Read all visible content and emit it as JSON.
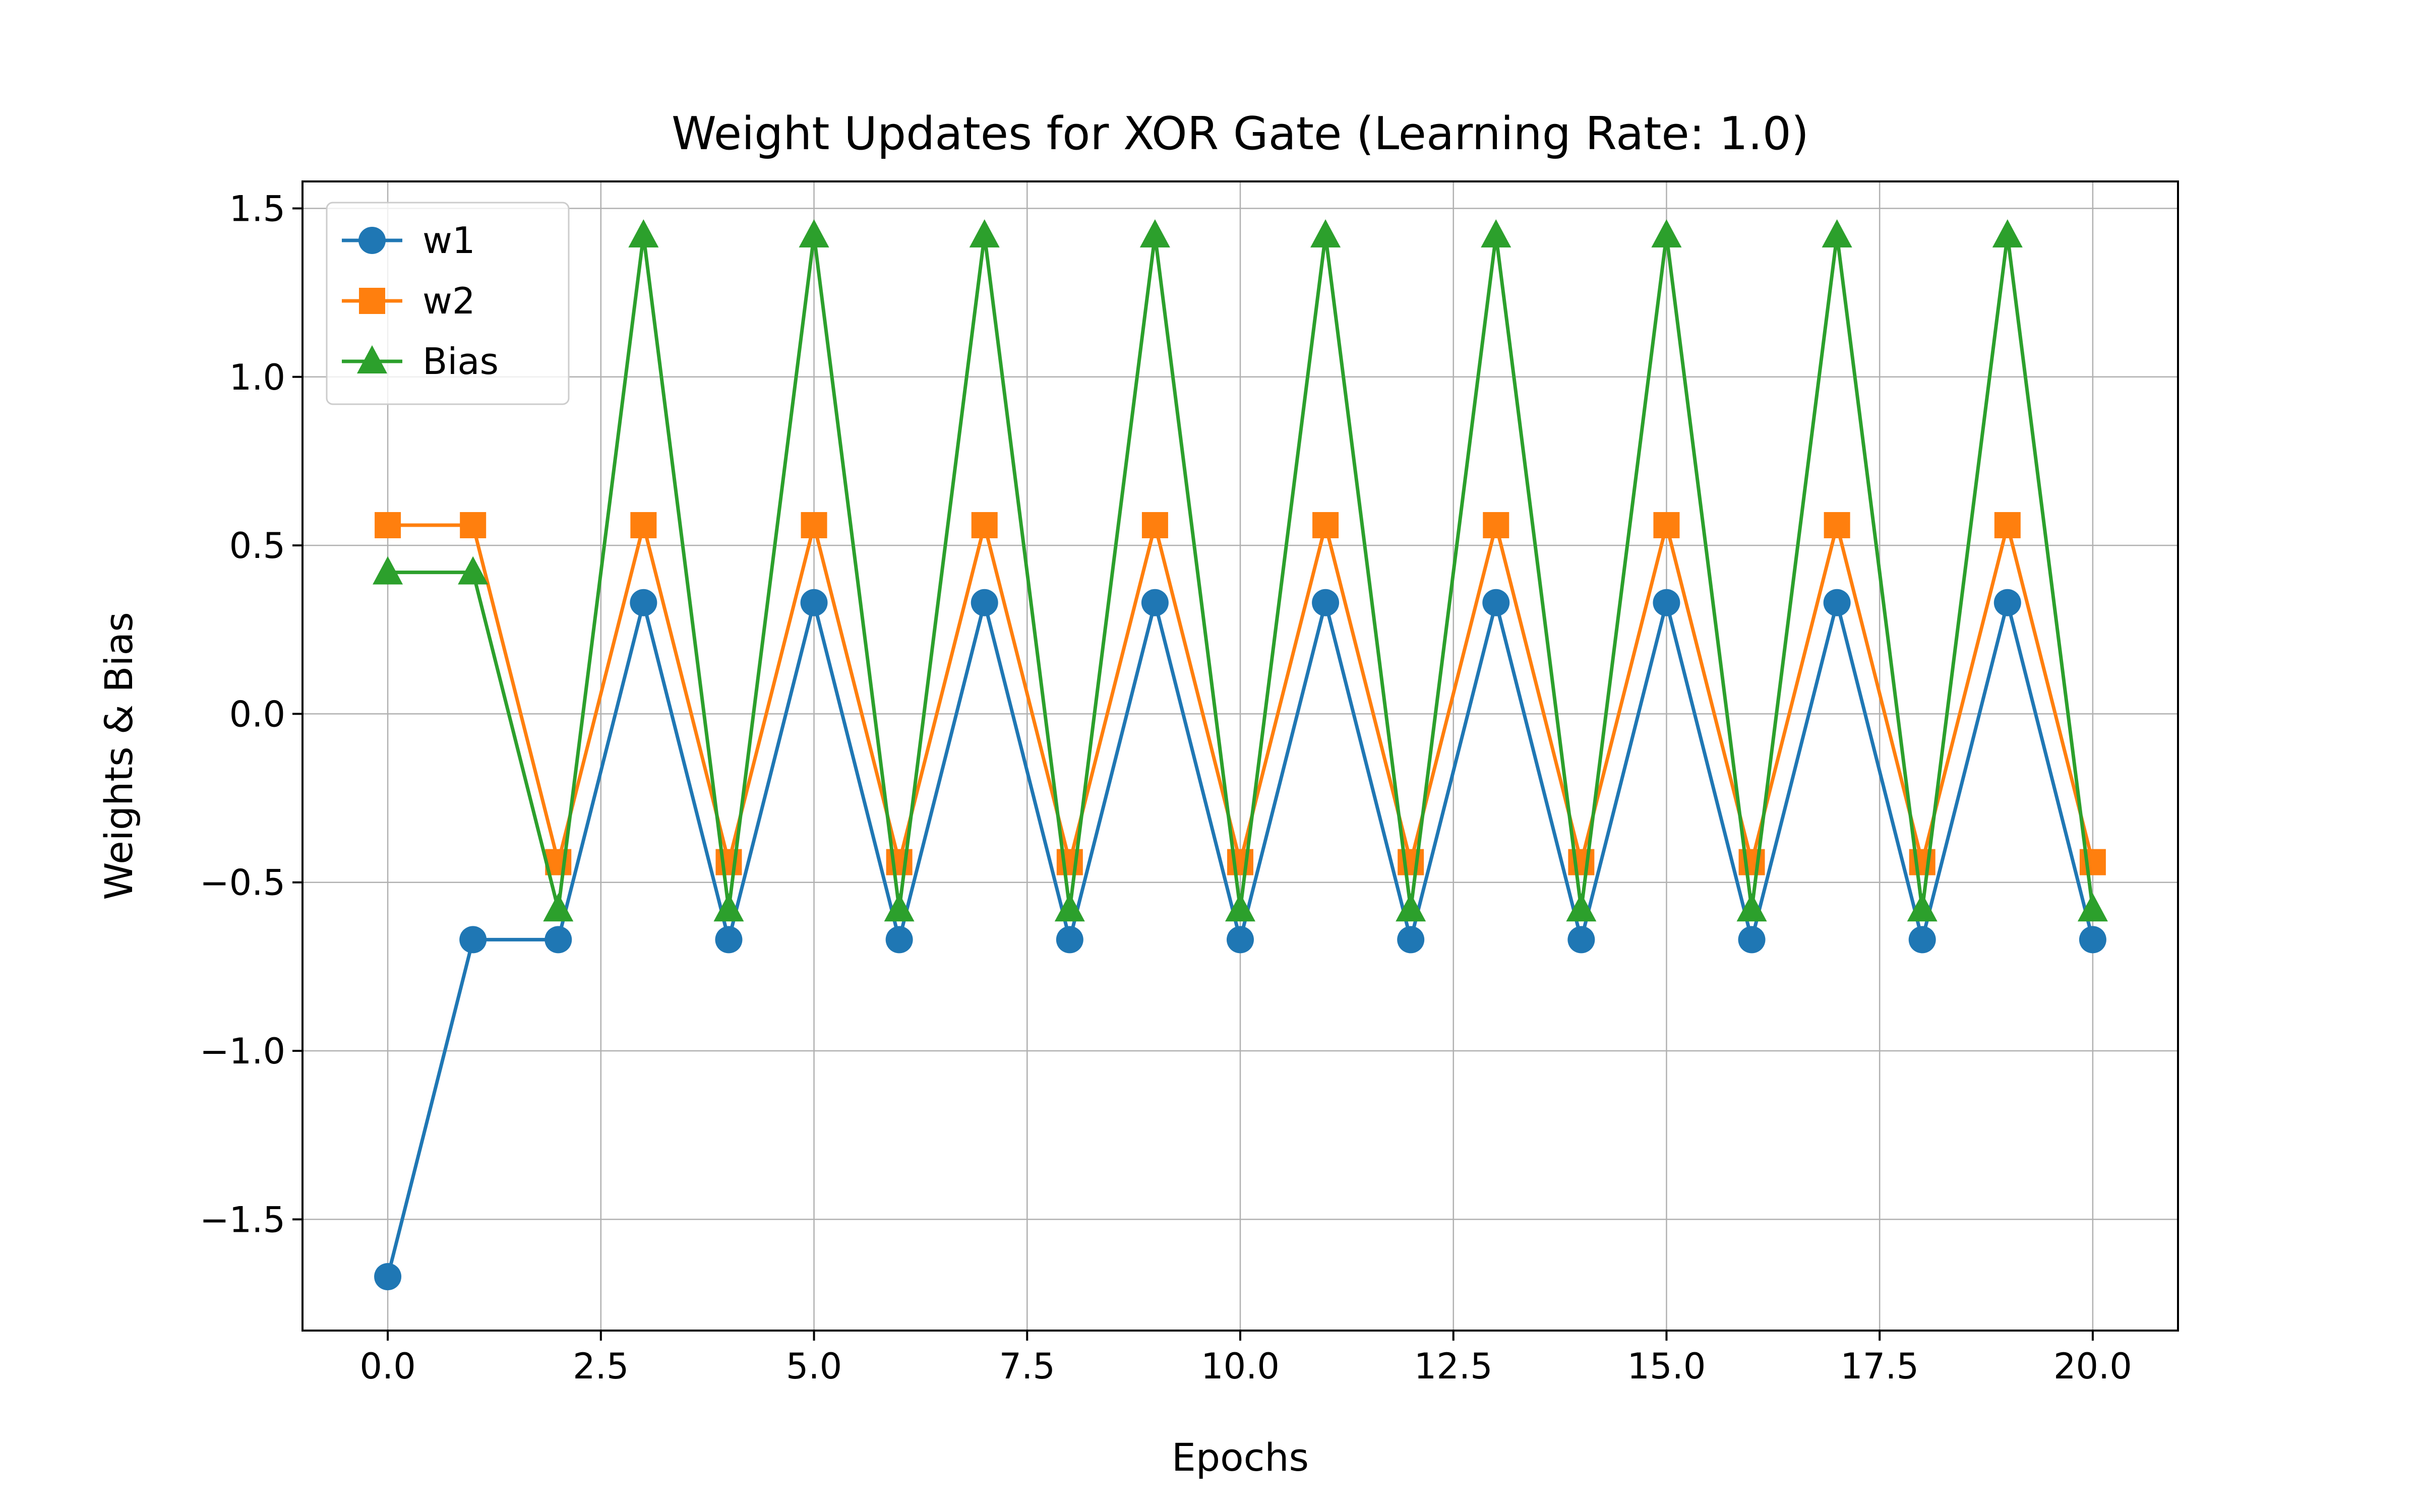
{
  "chart_data": {
    "type": "line",
    "title": "Weight Updates for XOR Gate (Learning Rate: 1.0)",
    "xlabel": "Epochs",
    "ylabel": "Weights & Bias",
    "xlim": [
      -1.0,
      21.0
    ],
    "ylim": [
      -1.83,
      1.58
    ],
    "xticks": [
      0.0,
      2.5,
      5.0,
      7.5,
      10.0,
      12.5,
      15.0,
      17.5,
      20.0
    ],
    "xtick_labels": [
      "0.0",
      "2.5",
      "5.0",
      "7.5",
      "10.0",
      "12.5",
      "15.0",
      "17.5",
      "20.0"
    ],
    "yticks": [
      -1.5,
      -1.0,
      -0.5,
      0.0,
      0.5,
      1.0,
      1.5
    ],
    "ytick_labels": [
      "−1.5",
      "−1.0",
      "−0.5",
      "0.0",
      "0.5",
      "1.0",
      "1.5"
    ],
    "grid": true,
    "legend_position": "top-left",
    "x": [
      0,
      1,
      2,
      3,
      4,
      5,
      6,
      7,
      8,
      9,
      10,
      11,
      12,
      13,
      14,
      15,
      16,
      17,
      18,
      19,
      20
    ],
    "series": [
      {
        "name": "w1",
        "color": "#1f77b4",
        "marker": "circle",
        "values": [
          -1.67,
          -0.67,
          -0.67,
          0.33,
          -0.67,
          0.33,
          -0.67,
          0.33,
          -0.67,
          0.33,
          -0.67,
          0.33,
          -0.67,
          0.33,
          -0.67,
          0.33,
          -0.67,
          0.33,
          -0.67,
          0.33,
          -0.67
        ]
      },
      {
        "name": "w2",
        "color": "#ff7f0e",
        "marker": "square",
        "values": [
          0.56,
          0.56,
          -0.44,
          0.56,
          -0.44,
          0.56,
          -0.44,
          0.56,
          -0.44,
          0.56,
          -0.44,
          0.56,
          -0.44,
          0.56,
          -0.44,
          0.56,
          -0.44,
          0.56,
          -0.44,
          0.56,
          -0.44
        ]
      },
      {
        "name": "Bias",
        "color": "#2ca02c",
        "marker": "triangle",
        "values": [
          0.42,
          0.42,
          -0.58,
          1.42,
          -0.58,
          1.42,
          -0.58,
          1.42,
          -0.58,
          1.42,
          -0.58,
          1.42,
          -0.58,
          1.42,
          -0.58,
          1.42,
          -0.58,
          1.42,
          -0.58,
          1.42,
          -0.58
        ]
      }
    ]
  }
}
